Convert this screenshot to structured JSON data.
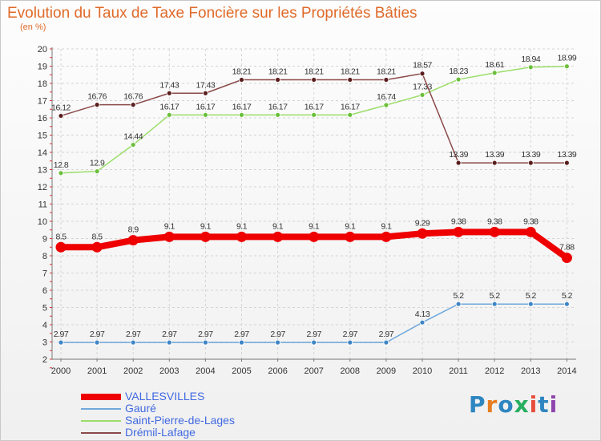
{
  "title": "Evolution du Taux de Taxe Foncière sur les Propriétés Bâties",
  "subtitle": "(en %)",
  "logo": {
    "text": "Proxiti",
    "letters": [
      "P",
      "r",
      "o",
      "x",
      "i",
      "t",
      "i"
    ],
    "colors": [
      "#2e86c1",
      "#e67e22",
      "#2e86c1",
      "#27ae60",
      "#e74c3c",
      "#2e86c1",
      "#8e44ad"
    ]
  },
  "chart_data": {
    "type": "line",
    "title": "Evolution du Taux de Taxe Foncière sur les Propriétés Bâties",
    "ylabel": "(en %)",
    "xlabel": "",
    "ylim": [
      2,
      20
    ],
    "yticks": [
      2,
      3,
      4,
      5,
      6,
      7,
      8,
      9,
      10,
      11,
      12,
      13,
      14,
      15,
      16,
      17,
      18,
      19,
      20
    ],
    "categories": [
      "2000",
      "2001",
      "2002",
      "2003",
      "2004",
      "2005",
      "2006",
      "2007",
      "2008",
      "2009",
      "2010",
      "2011",
      "2012",
      "2013",
      "2014"
    ],
    "legend_position": "bottom-left",
    "series": [
      {
        "name": "VALLESVILLES",
        "color": "#ee0000",
        "point_fill": "#ee0000",
        "emphasis": true,
        "values": [
          8.5,
          8.5,
          8.9,
          9.1,
          9.1,
          9.1,
          9.1,
          9.1,
          9.1,
          9.1,
          9.29,
          9.38,
          9.38,
          9.38,
          7.88
        ],
        "labels": [
          "8.5",
          "8.5",
          "8.9",
          "9.1",
          "9.1",
          "9.1",
          "9.1",
          "9.1",
          "9.1",
          "9.1",
          "9.29",
          "9.38",
          "9.38",
          "9.38",
          "7.88"
        ]
      },
      {
        "name": "Gauré",
        "color": "#6fa8dc",
        "point_fill": "#3d85c6",
        "emphasis": false,
        "values": [
          2.97,
          2.97,
          2.97,
          2.97,
          2.97,
          2.97,
          2.97,
          2.97,
          2.97,
          2.97,
          4.13,
          5.2,
          5.2,
          5.2,
          5.2
        ],
        "labels": [
          "2.97",
          "2.97",
          "2.97",
          "2.97",
          "2.97",
          "2.97",
          "2.97",
          "2.97",
          "2.97",
          "2.97",
          "4.13",
          "5.2",
          "5.2",
          "5.2",
          "5.2"
        ]
      },
      {
        "name": "Saint-Pierre-de-Lages",
        "color": "#9bdd6a",
        "point_fill": "#6abf3a",
        "emphasis": false,
        "values": [
          12.8,
          12.9,
          14.44,
          16.17,
          16.17,
          16.17,
          16.17,
          16.17,
          16.17,
          16.74,
          17.33,
          18.23,
          18.61,
          18.94,
          18.99
        ],
        "labels": [
          "12.8",
          "12.9",
          "14.44",
          "16.17",
          "16.17",
          "16.17",
          "16.17",
          "16.17",
          "16.17",
          "16.74",
          "17.33",
          "18.23",
          "18.61",
          "18.94",
          "18.99"
        ]
      },
      {
        "name": "Drémil-Lafage",
        "color": "#8b4a4a",
        "point_fill": "#5a1e1e",
        "emphasis": false,
        "values": [
          16.12,
          16.76,
          16.76,
          17.43,
          17.43,
          18.21,
          18.21,
          18.21,
          18.21,
          18.21,
          18.57,
          13.39,
          13.39,
          13.39,
          13.39
        ],
        "labels": [
          "16.12",
          "16.76",
          "16.76",
          "17.43",
          "17.43",
          "18.21",
          "18.21",
          "18.21",
          "18.21",
          "18.21",
          "18.57",
          "13.39",
          "13.39",
          "13.39",
          "13.39"
        ]
      }
    ]
  }
}
